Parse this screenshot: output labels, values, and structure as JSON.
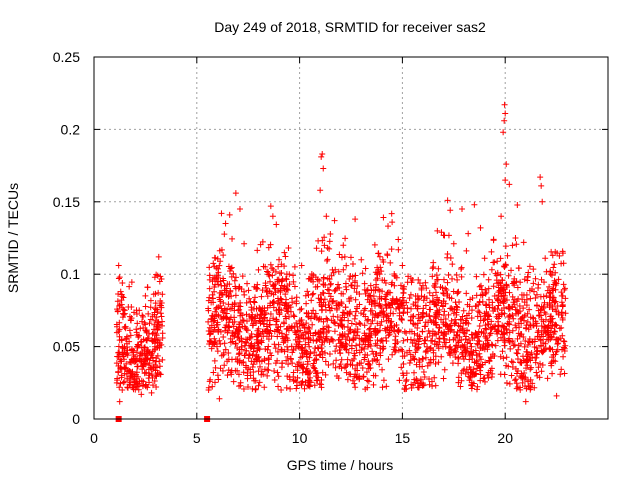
{
  "chart_data": {
    "type": "scatter",
    "title": "Day 249 of 2018, SRMTID for receiver sas2",
    "xlabel": "GPS time / hours",
    "ylabel": "SRMTID / TECUs",
    "xlim": [
      0,
      25
    ],
    "ylim": [
      0,
      0.25
    ],
    "xticks": [
      0,
      5,
      10,
      15,
      20
    ],
    "yticks": [
      0,
      0.05,
      0.1,
      0.15,
      0.2,
      0.25
    ],
    "xtick_labels": [
      "0",
      "5",
      "10",
      "15",
      "20"
    ],
    "ytick_labels": [
      "0",
      "0.05",
      "0.1",
      "0.15",
      "0.2",
      "0.25"
    ],
    "grid": true,
    "marker": "+",
    "color": "#ff0000",
    "zero_markers_x": [
      1.2,
      5.5
    ],
    "segments": [
      {
        "start": 1.1,
        "end": 3.35,
        "n": 340,
        "base": 0.048,
        "spread": 0.018
      },
      {
        "start": 5.55,
        "end": 22.95,
        "n": 2400,
        "base": 0.062,
        "spread": 0.022
      }
    ],
    "series": [
      {
        "name": "SRMTID",
        "points": [
          [
            1.2,
            0.106
          ],
          [
            1.25,
            0.098
          ],
          [
            1.3,
            0.088
          ],
          [
            1.35,
            0.079
          ],
          [
            1.45,
            0.072
          ],
          [
            1.25,
            0.012
          ],
          [
            1.6,
            0.052
          ],
          [
            1.8,
            0.068
          ],
          [
            2.0,
            0.043
          ],
          [
            2.2,
            0.075
          ],
          [
            2.5,
            0.085
          ],
          [
            2.6,
            0.091
          ],
          [
            3.0,
            0.08
          ],
          [
            3.1,
            0.099
          ],
          [
            3.15,
            0.112
          ],
          [
            3.2,
            0.095
          ],
          [
            2.8,
            0.018
          ],
          [
            2.3,
            0.017
          ],
          [
            6.1,
            0.014
          ],
          [
            6.2,
            0.142
          ],
          [
            6.4,
            0.135
          ],
          [
            6.6,
            0.141
          ],
          [
            6.9,
            0.156
          ],
          [
            7.1,
            0.145
          ],
          [
            7.3,
            0.121
          ],
          [
            8.0,
            0.103
          ],
          [
            8.6,
            0.147
          ],
          [
            8.7,
            0.14
          ],
          [
            9.0,
            0.11
          ],
          [
            9.5,
            0.1
          ],
          [
            10.1,
            0.106
          ],
          [
            10.5,
            0.097
          ],
          [
            10.9,
            0.123
          ],
          [
            11.05,
            0.181
          ],
          [
            11.1,
            0.183
          ],
          [
            11.15,
            0.173
          ],
          [
            11.0,
            0.158
          ],
          [
            11.3,
            0.14
          ],
          [
            11.7,
            0.137
          ],
          [
            12.2,
            0.112
          ],
          [
            12.7,
            0.138
          ],
          [
            13.0,
            0.11
          ],
          [
            13.5,
            0.081
          ],
          [
            14.5,
            0.136
          ],
          [
            14.8,
            0.124
          ],
          [
            15.0,
            0.106
          ],
          [
            15.5,
            0.096
          ],
          [
            16.0,
            0.092
          ],
          [
            16.5,
            0.108
          ],
          [
            16.9,
            0.129
          ],
          [
            17.2,
            0.151
          ],
          [
            17.5,
            0.121
          ],
          [
            17.9,
            0.145
          ],
          [
            18.2,
            0.128
          ],
          [
            18.5,
            0.148
          ],
          [
            18.8,
            0.132
          ],
          [
            19.0,
            0.111
          ],
          [
            19.2,
            0.09
          ],
          [
            19.5,
            0.062
          ],
          [
            19.8,
            0.14
          ],
          [
            19.9,
            0.198
          ],
          [
            19.95,
            0.206
          ],
          [
            20.0,
            0.211
          ],
          [
            19.97,
            0.217
          ],
          [
            20.05,
            0.176
          ],
          [
            20.0,
            0.165
          ],
          [
            20.2,
            0.162
          ],
          [
            20.5,
            0.125
          ],
          [
            20.9,
            0.122
          ],
          [
            21.1,
            0.098
          ],
          [
            21.4,
            0.088
          ],
          [
            21.7,
            0.167
          ],
          [
            21.75,
            0.161
          ],
          [
            21.8,
            0.15
          ],
          [
            22.0,
            0.085
          ],
          [
            22.3,
            0.076
          ],
          [
            22.6,
            0.072
          ],
          [
            22.9,
            0.047
          ],
          [
            21.0,
            0.012
          ],
          [
            22.5,
            0.016
          ],
          [
            9.1,
            0.02
          ],
          [
            8.0,
            0.023
          ],
          [
            13.6,
            0.03
          ],
          [
            17.0,
            0.028
          ]
        ]
      }
    ]
  }
}
